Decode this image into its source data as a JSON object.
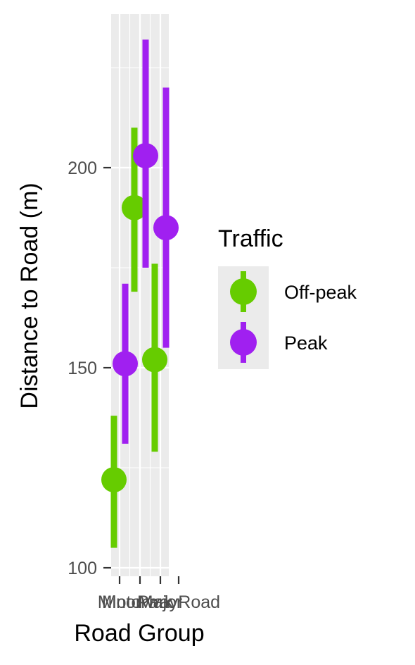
{
  "chart_data": {
    "type": "scatter",
    "title": "",
    "xlabel": "Road Group",
    "ylabel": "Distance to Road (m)",
    "categories": [
      "Minor",
      "Motorway",
      "Major",
      "Park Road"
    ],
    "ylim": [
      100,
      235
    ],
    "yticks": [
      100,
      150,
      200
    ],
    "grid": true,
    "legend": {
      "title": "Traffic",
      "position": "right"
    },
    "series": [
      {
        "name": "Off-peak",
        "color": "#66cc00",
        "values": [
          122,
          190,
          152
        ],
        "lower": [
          105,
          169,
          129
        ],
        "upper": [
          138,
          210,
          176
        ],
        "x_index": [
          0,
          1,
          2
        ]
      },
      {
        "name": "Peak",
        "color": "#a020f0",
        "values": [
          151,
          203,
          185
        ],
        "lower": [
          131,
          175,
          155
        ],
        "upper": [
          171,
          232,
          220
        ],
        "x_index": [
          0,
          1,
          2
        ]
      }
    ]
  }
}
